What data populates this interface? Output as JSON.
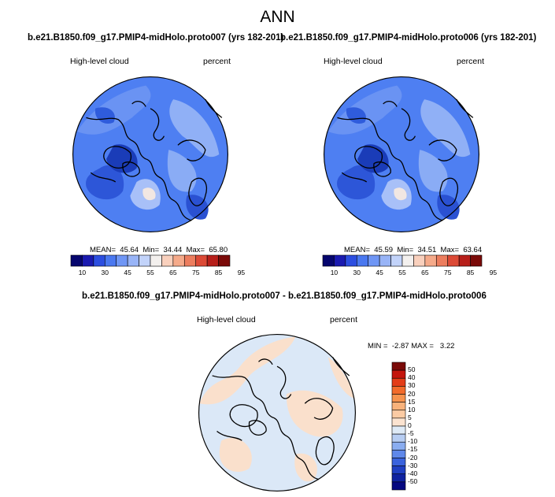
{
  "main_title": "ANN",
  "panel_left": {
    "case": "b.e21.B1850.f09_g17.PMIP4-midHolo.proto007 (yrs 182-201)",
    "variable": "High-level cloud",
    "units": "percent",
    "stats": {
      "mean_label": "MEAN=",
      "mean": "45.64",
      "min_label": "Min=",
      "min": "34.44",
      "max_label": "Max=",
      "max": "65.80"
    }
  },
  "panel_right": {
    "case": "b.e21.B1850.f09_g17.PMIP4-midHolo.proto006 (yrs 182-201)",
    "variable": "High-level cloud",
    "units": "percent",
    "stats": {
      "mean_label": "MEAN=",
      "mean": "45.59",
      "min_label": "Min=",
      "min": "34.51",
      "max_label": "Max=",
      "max": "63.64"
    }
  },
  "panel_diff": {
    "title": "b.e21.B1850.f09_g17.PMIP4-midHolo.proto007 - b.e21.B1850.f09_g17.PMIP4-midHolo.proto006",
    "variable": "High-level cloud",
    "units": "percent",
    "stats": {
      "min_label": "MIN =",
      "min": "-2.87",
      "max_label": "MAX =",
      "max": "3.22"
    }
  },
  "colorbar_main": {
    "ticks": [
      "10",
      "30",
      "45",
      "55",
      "65",
      "75",
      "85",
      "95"
    ],
    "colors": [
      "#06066e",
      "#1a1ab0",
      "#2c4ee0",
      "#4a78f0",
      "#6f96f5",
      "#98b4f7",
      "#c2d3fa",
      "#f3f0ee",
      "#f9d0bd",
      "#f5aa8a",
      "#ec7d5e",
      "#dc4a36",
      "#b71f1a",
      "#7a0a08"
    ]
  },
  "colorbar_diff": {
    "ticks": [
      "50",
      "40",
      "30",
      "20",
      "15",
      "10",
      "5",
      "0",
      "-5",
      "-10",
      "-15",
      "-20",
      "-30",
      "-40",
      "-50"
    ],
    "colors": [
      "#7a0a08",
      "#c4150c",
      "#e33d18",
      "#f26b2b",
      "#f6934e",
      "#f8b27b",
      "#fbcba4",
      "#fbe3d0",
      "#deeaf6",
      "#b7cdf2",
      "#8aadf0",
      "#5f88ea",
      "#3a63dd",
      "#1f3fc2",
      "#0f22a0",
      "#050880"
    ]
  },
  "colors": {
    "map_base_blue": "#4e7ff2",
    "map_light_blue": "#8fb0f6",
    "map_dark_blue": "#2146c9",
    "diff_light_blue": "#dbe8f7",
    "diff_peach": "#fae0cc",
    "coastline": "#000000"
  }
}
